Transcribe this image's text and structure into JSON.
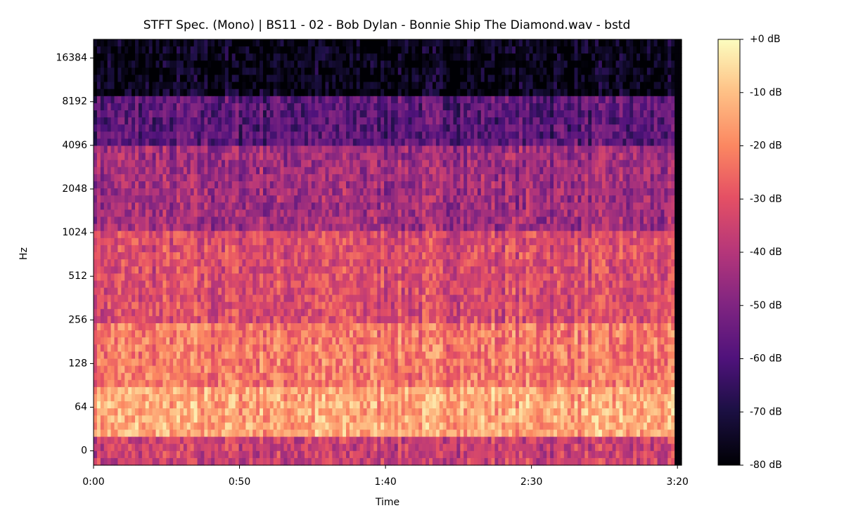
{
  "chart_data": {
    "type": "spectrogram",
    "title": "STFT Spec. (Mono) | BS11 - 02 - Bob Dylan - Bonnie Ship The Diamond.wav - bstd",
    "xlabel": "Time",
    "ylabel": "Hz",
    "xlim": [
      0,
      201.4
    ],
    "xticks": [
      {
        "value": 0,
        "label": "0:00"
      },
      {
        "value": 50,
        "label": "0:50"
      },
      {
        "value": 100,
        "label": "1:40"
      },
      {
        "value": 150,
        "label": "2:30"
      },
      {
        "value": 200,
        "label": "3:20"
      }
    ],
    "yscale": "symlog",
    "linthresh": 64,
    "ylim": [
      -21,
      22050
    ],
    "yticks": [
      0,
      64,
      128,
      256,
      512,
      1024,
      2048,
      4096,
      8192,
      16384
    ],
    "colormap": "magma",
    "clim": [
      -80,
      0
    ],
    "cticks": [
      {
        "value": 0,
        "label": "+0 dB"
      },
      {
        "value": -10,
        "label": "-10 dB"
      },
      {
        "value": -20,
        "label": "-20 dB"
      },
      {
        "value": -30,
        "label": "-30 dB"
      },
      {
        "value": -40,
        "label": "-40 dB"
      },
      {
        "value": -50,
        "label": "-50 dB"
      },
      {
        "value": -60,
        "label": "-60 dB"
      },
      {
        "value": -70,
        "label": "-70 dB"
      },
      {
        "value": -80,
        "label": "-80 dB"
      }
    ]
  }
}
